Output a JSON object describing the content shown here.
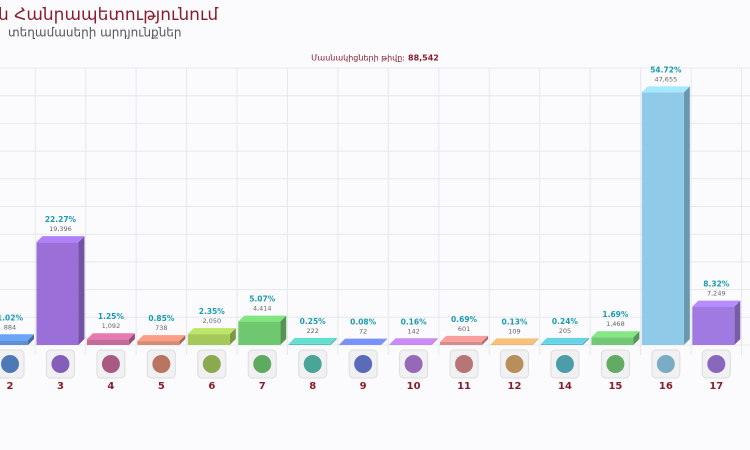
{
  "chart_data": {
    "type": "bar3d",
    "title": "ն Հանրապետությունում",
    "subtitle": "տեղամասերի արդյունքներ",
    "participants_label": "Մասնակիցների թիվը:",
    "participants": 88542,
    "participants_text": "88,542",
    "categories": [
      "2",
      "3",
      "4",
      "5",
      "6",
      "7",
      "8",
      "9",
      "10",
      "11",
      "12",
      "14",
      "15",
      "16",
      "17"
    ],
    "values": [
      1.02,
      22.27,
      1.25,
      0.85,
      2.35,
      5.07,
      0.25,
      0.08,
      0.16,
      0.69,
      0.13,
      0.24,
      1.69,
      54.72,
      8.32
    ],
    "value_labels": [
      "1.02%",
      "22.27%",
      "1.25%",
      "0.85%",
      "2.35%",
      "5.07%",
      "0.25%",
      "0.08%",
      "0.16%",
      "0.69%",
      "0.13%",
      "0.24%",
      "1.69%",
      "54.72%",
      "8.32%"
    ],
    "votes": [
      884,
      19396,
      1092,
      738,
      2050,
      4414,
      222,
      72,
      142,
      601,
      109,
      205,
      1468,
      47655,
      7249
    ],
    "vote_labels": [
      "884",
      "19,396",
      "1,092",
      "738",
      "2,050",
      "4,414",
      "222",
      "72",
      "142",
      "601",
      "109",
      "205",
      "1,468",
      "47,655",
      "7,249"
    ],
    "colors": [
      "#5b8fd6",
      "#9b6fd8",
      "#c66a9a",
      "#d98a72",
      "#a4c85a",
      "#6fc86f",
      "#57c2b4",
      "#6a7fd8",
      "#b07ad8",
      "#d98a8a",
      "#d8a86a",
      "#5ab8c8",
      "#74c874",
      "#8fcbe8",
      "#a07ae0"
    ],
    "ylim": [
      0,
      60
    ],
    "grid": true
  }
}
